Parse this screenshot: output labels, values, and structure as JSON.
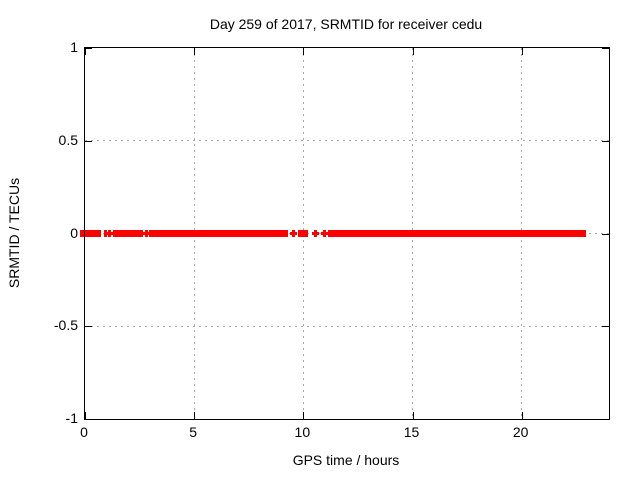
{
  "chart_data": {
    "type": "scatter",
    "title": "Day 259 of 2017, SRMTID for receiver cedu",
    "xlabel": "GPS time / hours",
    "ylabel": "SRMTID / TECUs",
    "xlim": [
      0,
      24
    ],
    "ylim": [
      -1,
      1
    ],
    "grid": true,
    "legend": "none",
    "marker": "+",
    "grid_x_hours": [
      5,
      10,
      15,
      20
    ],
    "grid_y_values": [
      -0.5,
      0,
      0.5
    ],
    "xticks": [
      {
        "v": 0,
        "label": "0"
      },
      {
        "v": 5,
        "label": "5"
      },
      {
        "v": 10,
        "label": "10"
      },
      {
        "v": 15,
        "label": "15"
      },
      {
        "v": 20,
        "label": "20"
      }
    ],
    "yticks": [
      {
        "v": 1,
        "label": "1"
      },
      {
        "v": 0.5,
        "label": "0.5"
      },
      {
        "v": 0,
        "label": "0"
      },
      {
        "v": -0.5,
        "label": "-0.5"
      },
      {
        "v": -1,
        "label": "-1"
      }
    ],
    "series": [
      {
        "name": "SRMTID",
        "color": "#ff0000",
        "y_level": 0,
        "band_halfwidth_tecu": 0.02,
        "segments_hours": [
          [
            -0.23,
            -0.05
          ],
          [
            0.02,
            0.73
          ],
          [
            0.85,
            1.02
          ],
          [
            1.28,
            2.66
          ],
          [
            2.95,
            9.28
          ],
          [
            9.75,
            10.22
          ],
          [
            11.13,
            22.95
          ]
        ],
        "isolated_points_hours": [
          1.12,
          2.8,
          9.55,
          10.55,
          10.95
        ]
      }
    ]
  }
}
